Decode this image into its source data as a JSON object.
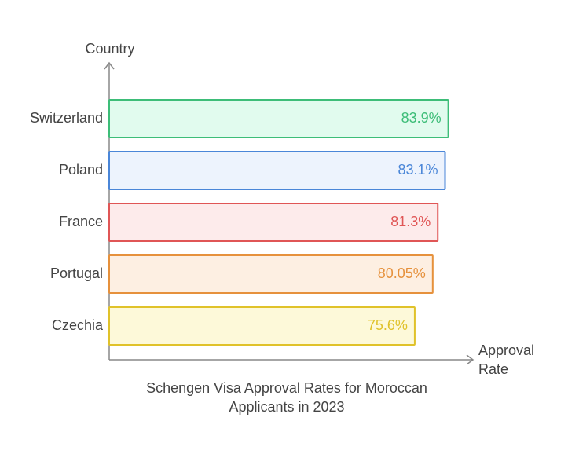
{
  "chart_data": {
    "type": "bar",
    "orientation": "horizontal",
    "title": "Schengen Visa Approval Rates for Moroccan Applicants in 2023",
    "x_label": "Approval Rate",
    "y_label": "Country",
    "categories": [
      "Switzerland",
      "Poland",
      "France",
      "Portugal",
      "Czechia"
    ],
    "values": [
      83.9,
      83.1,
      81.3,
      80.05,
      75.6
    ],
    "value_labels": [
      "83.9%",
      "83.1%",
      "81.3%",
      "80.05%",
      "75.6%"
    ],
    "colors": [
      "#3dbd78",
      "#4a86d8",
      "#e05656",
      "#e6913c",
      "#e0c22a"
    ],
    "fills": [
      "#e1fbee",
      "#edf3fd",
      "#fdebeb",
      "#fdefe2",
      "#fdf9d9"
    ],
    "xlim": [
      0,
      90
    ]
  }
}
